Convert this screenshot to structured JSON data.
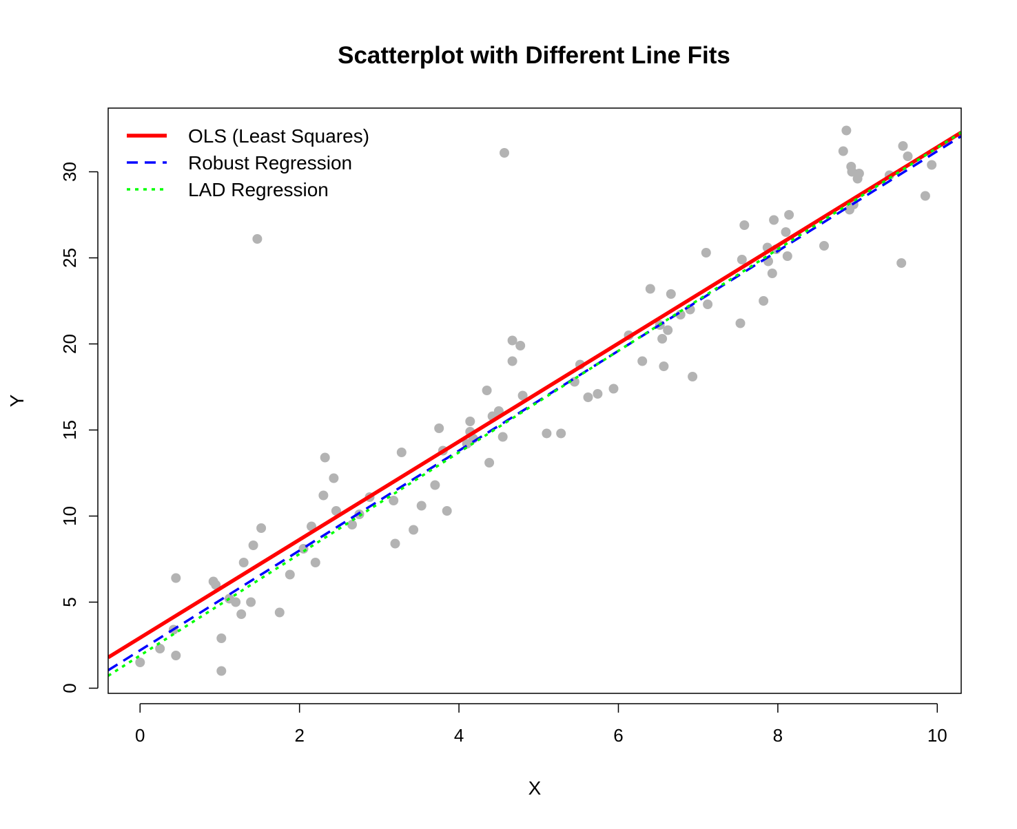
{
  "chart_data": {
    "type": "scatter",
    "title": "Scatterplot with Different Line Fits",
    "xlabel": "X",
    "ylabel": "Y",
    "xlim": [
      -0.4,
      10.3
    ],
    "ylim": [
      -0.3,
      33.7
    ],
    "x_ticks": [
      0,
      2,
      4,
      6,
      8,
      10
    ],
    "y_ticks": [
      0,
      5,
      10,
      15,
      20,
      25,
      30
    ],
    "grid": false,
    "legend_position": "top-left",
    "points": {
      "color": "#b3b3b3",
      "x": [
        0.0,
        0.25,
        0.42,
        0.45,
        0.45,
        0.92,
        0.95,
        1.02,
        1.02,
        1.12,
        1.2,
        1.27,
        1.3,
        1.39,
        1.42,
        1.47,
        1.52,
        1.75,
        1.88,
        2.05,
        2.15,
        2.2,
        2.3,
        2.32,
        2.43,
        2.46,
        2.66,
        2.75,
        2.88,
        3.18,
        3.2,
        3.28,
        3.43,
        3.53,
        3.7,
        3.75,
        3.8,
        3.85,
        4.1,
        4.14,
        4.14,
        4.18,
        4.35,
        4.38,
        4.42,
        4.5,
        4.55,
        4.57,
        4.67,
        4.67,
        4.77,
        4.8,
        5.1,
        5.28,
        5.45,
        5.52,
        5.62,
        5.74,
        5.94,
        6.13,
        6.3,
        6.4,
        6.52,
        6.55,
        6.57,
        6.62,
        6.66,
        6.78,
        6.9,
        6.93,
        7.1,
        7.12,
        7.53,
        7.55,
        7.58,
        7.82,
        7.87,
        7.88,
        7.93,
        7.95,
        7.98,
        8.1,
        8.12,
        8.14,
        8.58,
        8.82,
        8.86,
        8.9,
        8.92,
        8.93,
        8.95,
        9.0,
        9.02,
        9.4,
        9.55,
        9.57,
        9.63,
        9.85,
        9.93
      ],
      "y": [
        1.5,
        2.3,
        3.4,
        1.9,
        6.4,
        6.2,
        6.0,
        2.9,
        1.0,
        5.2,
        5.0,
        4.3,
        7.3,
        5.0,
        8.3,
        26.1,
        9.3,
        4.4,
        6.6,
        8.1,
        9.4,
        7.3,
        11.2,
        13.4,
        12.2,
        10.3,
        9.5,
        10.1,
        11.1,
        10.9,
        8.4,
        13.7,
        9.2,
        10.6,
        11.8,
        15.1,
        13.8,
        10.3,
        14.2,
        15.5,
        14.9,
        14.5,
        17.3,
        13.1,
        15.8,
        16.1,
        14.6,
        31.1,
        20.2,
        19.0,
        19.9,
        17.0,
        14.8,
        14.8,
        17.8,
        18.8,
        16.9,
        17.1,
        17.4,
        20.5,
        19.0,
        23.2,
        21.1,
        20.3,
        18.7,
        20.8,
        22.9,
        21.7,
        22.0,
        18.1,
        25.3,
        22.3,
        21.2,
        24.9,
        26.9,
        22.5,
        25.6,
        24.8,
        24.1,
        27.2,
        25.5,
        26.5,
        25.1,
        27.5,
        25.7,
        31.2,
        32.4,
        27.8,
        30.3,
        30.0,
        28.1,
        29.6,
        29.9,
        29.8,
        24.7,
        31.5,
        30.9,
        28.6,
        30.4
      ]
    },
    "series": [
      {
        "name": "OLS (Least Squares)",
        "type": "line",
        "color": "#ff0000",
        "style": "solid",
        "intercept": 2.93,
        "slope": 2.85
      },
      {
        "name": "Robust Regression",
        "type": "line",
        "color": "#0000ff",
        "style": "dashed",
        "intercept": 2.2,
        "slope": 2.9
      },
      {
        "name": "LAD Regression",
        "type": "line",
        "color": "#00ff00",
        "style": "dotted",
        "intercept": 1.9,
        "slope": 2.95
      }
    ]
  }
}
